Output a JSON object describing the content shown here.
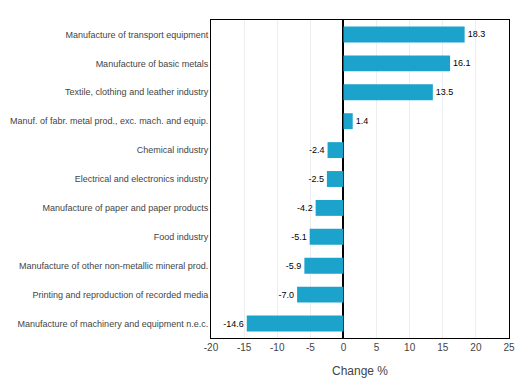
{
  "chart_data": {
    "type": "bar",
    "orientation": "horizontal",
    "categories": [
      "Manufacture of machinery and equipment n.e.c.",
      "Printing and reproduction of recorded media",
      "Manufacture of other non-metallic mineral prod.",
      "Food industry",
      "Manufacture of paper and paper products",
      "Electrical and electronics industry",
      "Chemical industry",
      "Manuf. of fabr. metal prod., exc. mach. and equip.",
      "Textile, clothing and leather industry",
      "Manufacture of basic metals",
      "Manufacture of transport equipment"
    ],
    "values": [
      -14.6,
      -7.0,
      -5.9,
      -5.1,
      -4.2,
      -2.5,
      -2.4,
      1.4,
      13.5,
      16.1,
      18.3
    ],
    "value_labels": [
      "-14.6",
      "-7.0",
      "-5.9",
      "-5.1",
      "-4.2",
      "-2.5",
      "-2.4",
      "1.4",
      "13.5",
      "16.1",
      "18.3"
    ],
    "data_labels": true,
    "color": "#1ba3cb",
    "xlabel": "Change %",
    "xlim": [
      -20,
      25
    ],
    "xticks": [
      -20,
      -15,
      -10,
      -5,
      0,
      5,
      10,
      15,
      20,
      25
    ],
    "grid": true
  }
}
